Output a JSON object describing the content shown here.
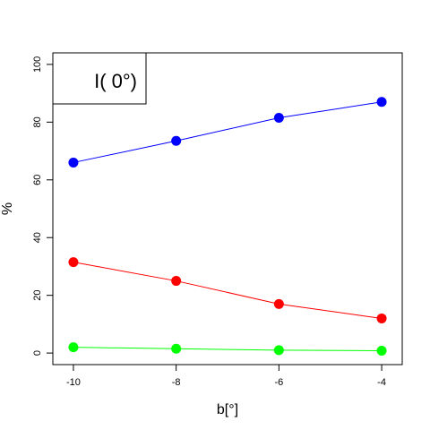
{
  "chart_data": {
    "type": "line",
    "x": [
      -10,
      -8,
      -6,
      -4
    ],
    "series": [
      {
        "color": "#0000ff",
        "values": [
          66,
          73.5,
          81.5,
          87
        ]
      },
      {
        "color": "#ff0000",
        "values": [
          31.5,
          25,
          17,
          12
        ]
      },
      {
        "color": "#00ff00",
        "values": [
          2,
          1.5,
          1,
          0.8
        ]
      }
    ],
    "xlabel": "b[°]",
    "ylabel": "%",
    "xlim": [
      -10.4,
      -3.6
    ],
    "ylim": [
      -4,
      104
    ],
    "xticks": [
      -10,
      -8,
      -6,
      -4
    ],
    "yticks": [
      0,
      20,
      40,
      60,
      80,
      100
    ],
    "xtick_labels": [
      "-10",
      "-8",
      "-6",
      "-4"
    ],
    "ytick_labels": [
      "0",
      "20",
      "40",
      "60",
      "80",
      "100"
    ],
    "legend_text": "I( 0°)",
    "legend_position": "top-left",
    "grid": false
  }
}
